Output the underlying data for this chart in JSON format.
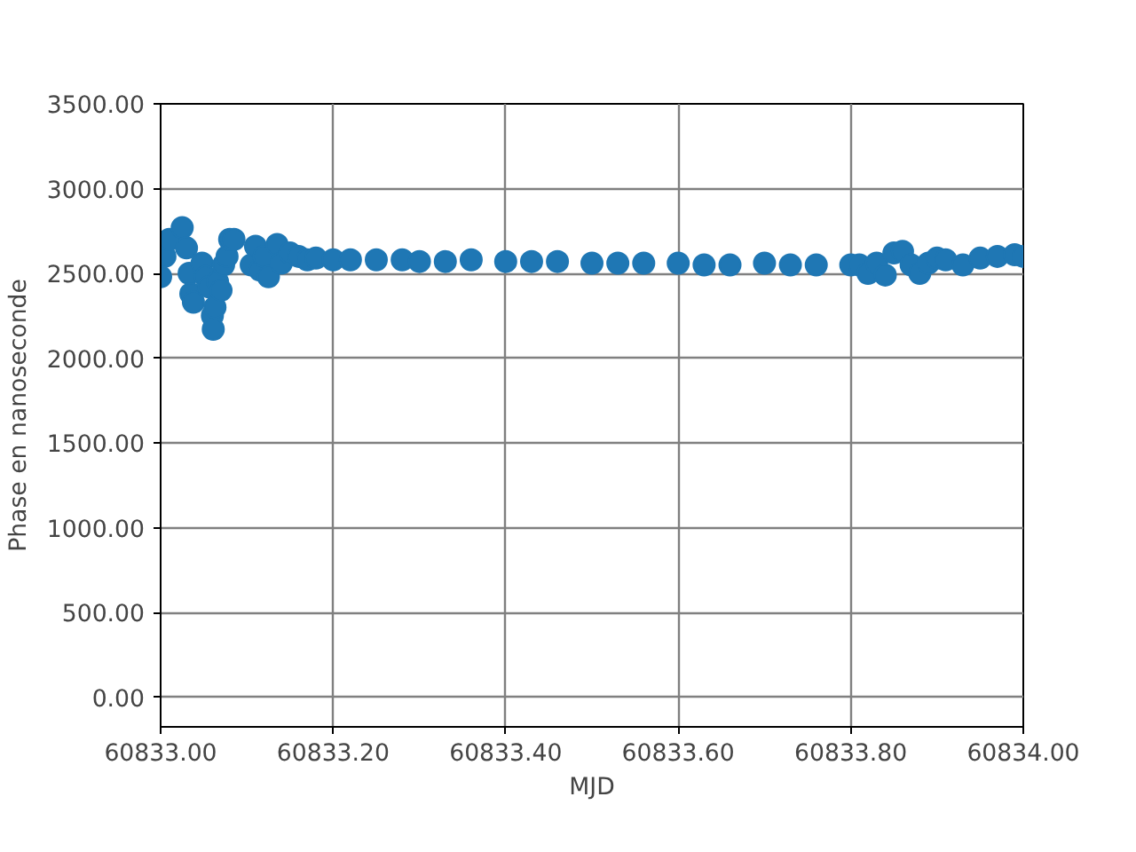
{
  "chart_data": {
    "type": "scatter",
    "xlabel": "MJD",
    "ylabel": "Phase en nanoseconde",
    "x": [
      60833.0,
      60833.005,
      60833.01,
      60833.025,
      60833.03,
      60833.033,
      60833.035,
      60833.038,
      60833.048,
      60833.052,
      60833.056,
      60833.06,
      60833.061,
      60833.063,
      60833.066,
      60833.07,
      60833.073,
      60833.077,
      60833.08,
      60833.085,
      60833.105,
      60833.11,
      60833.115,
      60833.12,
      60833.125,
      60833.135,
      60833.14,
      60833.15,
      60833.16,
      60833.17,
      60833.18,
      60833.2,
      60833.22,
      60833.25,
      60833.28,
      60833.3,
      60833.33,
      60833.36,
      60833.4,
      60833.43,
      60833.46,
      60833.5,
      60833.53,
      60833.56,
      60833.6,
      60833.63,
      60833.66,
      60833.7,
      60833.73,
      60833.76,
      60833.8,
      60833.81,
      60833.82,
      60833.83,
      60833.84,
      60833.85,
      60833.86,
      60833.87,
      60833.88,
      60833.89,
      60833.9,
      60833.91,
      60833.93,
      60833.95,
      60833.97,
      60833.99,
      60834.0
    ],
    "series": [
      {
        "color": "#1f77b4",
        "values": [
          2480,
          2600,
          2700,
          2770,
          2650,
          2500,
          2380,
          2330,
          2560,
          2480,
          2420,
          2250,
          2170,
          2300,
          2450,
          2400,
          2550,
          2600,
          2700,
          2700,
          2550,
          2660,
          2520,
          2600,
          2480,
          2670,
          2560,
          2620,
          2600,
          2580,
          2590,
          2580,
          2580,
          2580,
          2580,
          2570,
          2570,
          2580,
          2570,
          2570,
          2570,
          2560,
          2560,
          2560,
          2560,
          2550,
          2550,
          2560,
          2550,
          2550,
          2550,
          2550,
          2500,
          2560,
          2490,
          2620,
          2630,
          2550,
          2500,
          2560,
          2590,
          2580,
          2550,
          2590,
          2600,
          2610,
          2600
        ]
      }
    ],
    "marker": "circle",
    "grid": true,
    "xlim": [
      60833.0,
      60834.0
    ],
    "xticks": [
      {
        "value": 60833.0,
        "label": "60833.00"
      },
      {
        "value": 60833.2,
        "label": "60833.20"
      },
      {
        "value": 60833.4,
        "label": "60833.40"
      },
      {
        "value": 60833.6,
        "label": "60833.60"
      },
      {
        "value": 60833.8,
        "label": "60833.80"
      },
      {
        "value": 60834.0,
        "label": "60834.00"
      }
    ],
    "ylim": [
      -175,
      3500
    ],
    "yticks": [
      {
        "value": 0,
        "label": "0.00"
      },
      {
        "value": 500,
        "label": "500.00"
      },
      {
        "value": 1000,
        "label": "1000.00"
      },
      {
        "value": 1500,
        "label": "1500.00"
      },
      {
        "value": 2000,
        "label": "2000.00"
      },
      {
        "value": 2500,
        "label": "2500.00"
      },
      {
        "value": 3000,
        "label": "3000.00"
      },
      {
        "value": 3500,
        "label": "3500.00"
      }
    ]
  }
}
